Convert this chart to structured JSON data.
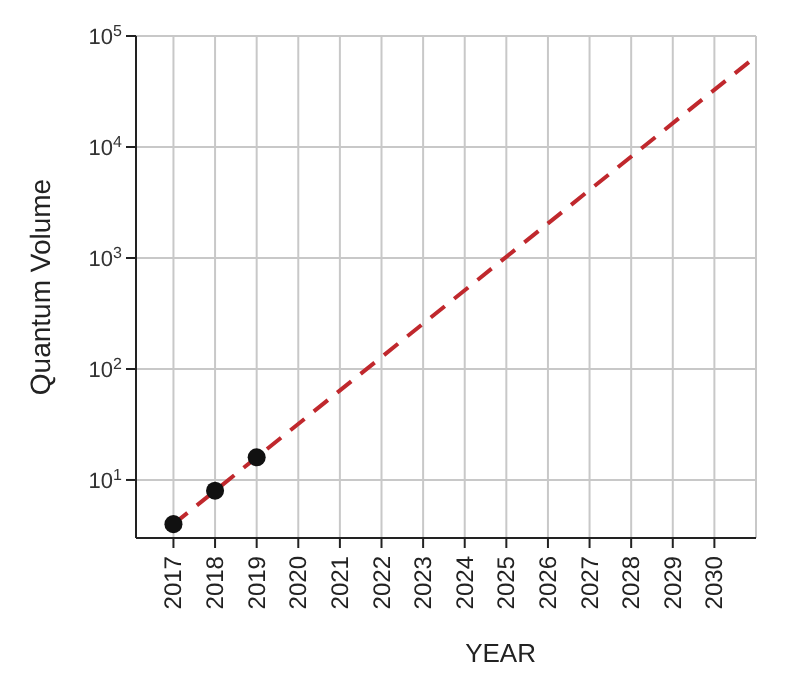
{
  "chart_data": {
    "type": "scatter",
    "xlabel": "YEAR",
    "ylabel": "Quantum Volume",
    "series": [
      {
        "color": "#111111",
        "x": [
          2017,
          2018,
          2019
        ],
        "values": [
          4,
          8,
          16
        ],
        "marker": "circle"
      },
      {
        "type": "line",
        "color": "#c0282d",
        "x": [
          2017,
          2031
        ],
        "values": [
          4,
          65536
        ],
        "line_style": "dashed",
        "marker": "none"
      }
    ],
    "log": "y",
    "xlim": [
      2016.1,
      2031
    ],
    "xticks": [
      2017,
      2018,
      2019,
      2020,
      2021,
      2022,
      2023,
      2024,
      2025,
      2026,
      2027,
      2028,
      2029,
      2030
    ],
    "ylim": [
      3,
      100000
    ],
    "yticks": [
      {
        "value": 10,
        "label": "10$^{1}$"
      },
      {
        "value": 100,
        "label": "10$^{2}$"
      },
      {
        "value": 1000,
        "label": "10$^{3}$"
      },
      {
        "value": 10000,
        "label": "10$^{4}$"
      },
      {
        "value": 100000,
        "label": "10$^{5}$"
      }
    ],
    "grid": true,
    "legend": false
  }
}
